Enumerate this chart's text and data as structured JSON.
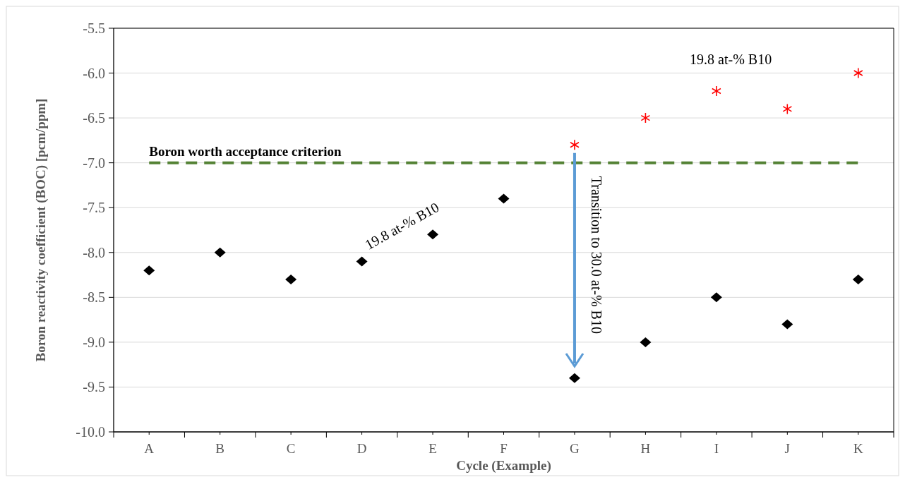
{
  "chart_data": {
    "type": "scatter",
    "xlabel": "Cycle (Example)",
    "ylabel": "Boron reactivity coefficient (BOC) [pcm/ppm]",
    "categories": [
      "A",
      "B",
      "C",
      "D",
      "E",
      "F",
      "G",
      "H",
      "I",
      "J",
      "K"
    ],
    "series": [
      {
        "color": "#000000",
        "marker": "diamond",
        "values": [
          -8.2,
          -8.0,
          -8.3,
          -8.1,
          -7.8,
          -7.4,
          -9.4,
          -9.0,
          -8.5,
          -8.8,
          -8.3
        ]
      },
      {
        "color": "#ff0000",
        "marker": "cross",
        "values": [
          null,
          null,
          null,
          null,
          null,
          null,
          -6.8,
          -6.5,
          -6.2,
          -6.4,
          -6.0
        ]
      }
    ],
    "ylim": [
      -10.0,
      -5.5
    ],
    "yticks": [
      {
        "value": -10.0,
        "label": "-10.0"
      },
      {
        "value": -9.5,
        "label": "-9.5"
      },
      {
        "value": -9.0,
        "label": "-9.0"
      },
      {
        "value": -8.5,
        "label": "-8.5"
      },
      {
        "value": -8.0,
        "label": "-8.0"
      },
      {
        "value": -7.5,
        "label": "-7.5"
      },
      {
        "value": -7.0,
        "label": "-7.0"
      },
      {
        "value": -6.5,
        "label": "-6.5"
      },
      {
        "value": -6.0,
        "label": "-6.0"
      },
      {
        "value": -5.5,
        "label": "-5.5"
      }
    ],
    "grid": "y",
    "ref_lines": [
      {
        "axis": "y",
        "value": -7.0,
        "label": "Boron worth acceptance criterion",
        "color": "#548235",
        "line_style": "dashed"
      }
    ],
    "annotations": [
      "19.8 at-% B10",
      "19.8 at-% B10",
      "Transition to 30.0 at-% B10"
    ]
  }
}
